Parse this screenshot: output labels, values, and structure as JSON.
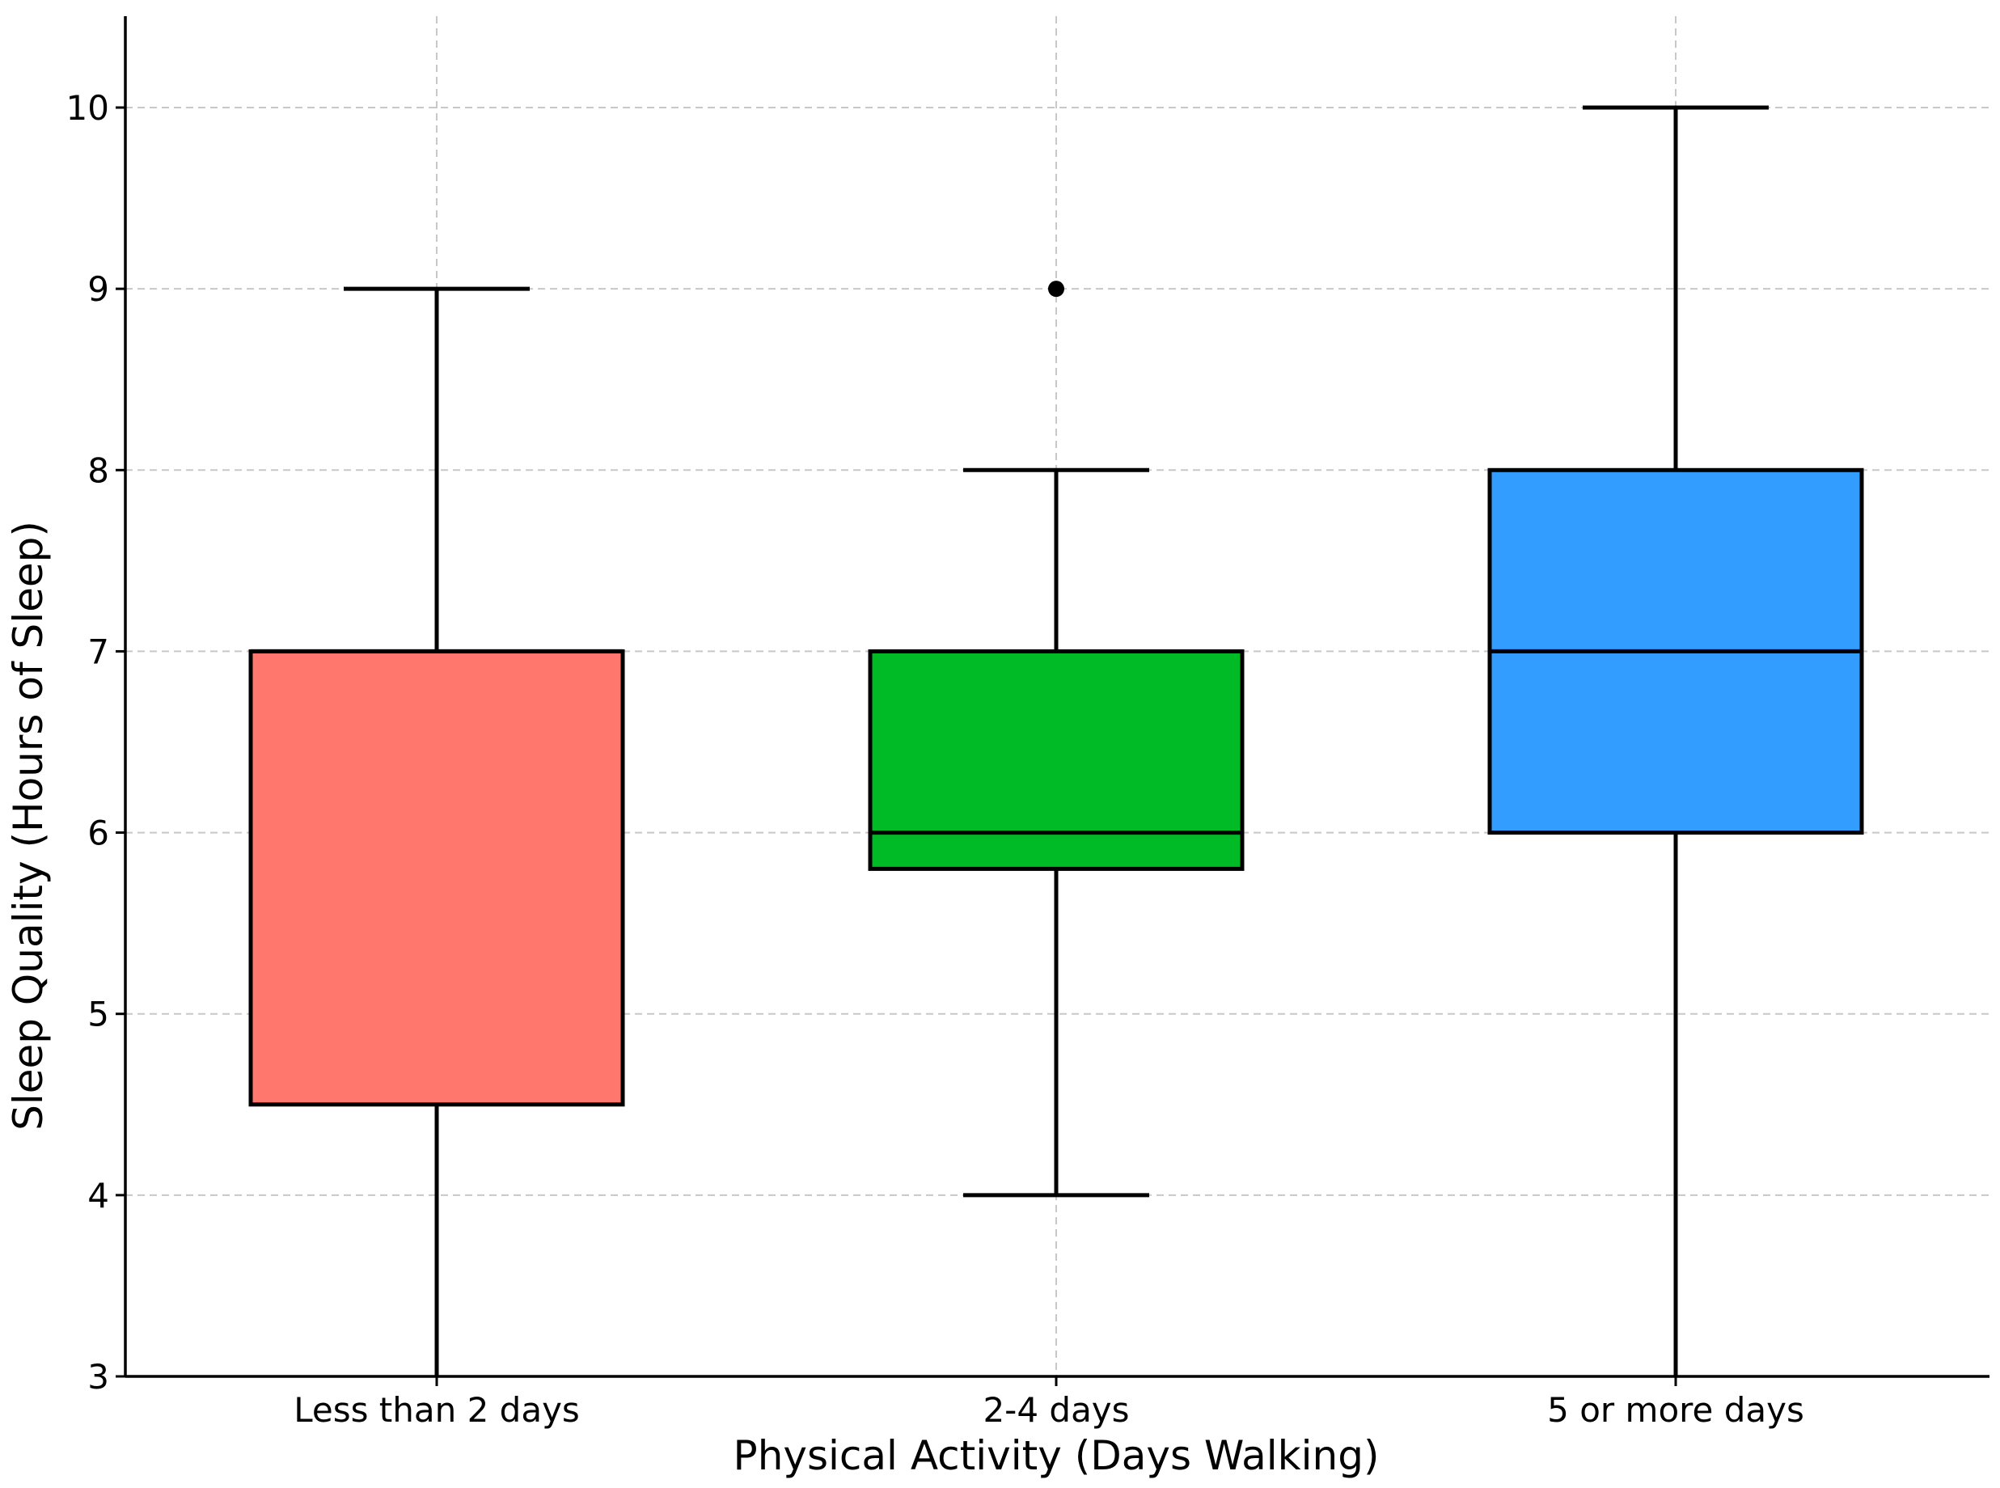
{
  "chart_data": {
    "type": "box",
    "title": "",
    "xlabel": "Physical Activity (Days Walking)",
    "ylabel": "Sleep Quality (Hours of Sleep)",
    "ylim": [
      3,
      10.5
    ],
    "yticks": [
      "3",
      "4",
      "5",
      "6",
      "7",
      "8",
      "9",
      "10"
    ],
    "grid": true,
    "categories": [
      "Less than 2 days",
      "2-4 days",
      "5 or more days"
    ],
    "boxes": [
      {
        "category": "Less than 2 days",
        "whisker_low": 3,
        "q1": 4.5,
        "median": 7,
        "q3": 7,
        "whisker_high": 9,
        "outliers": [],
        "color": "#ff776d"
      },
      {
        "category": "2-4 days",
        "whisker_low": 4,
        "q1": 5.8,
        "median": 6,
        "q3": 7,
        "whisker_high": 8,
        "outliers": [
          9
        ],
        "color": "#00ba26"
      },
      {
        "category": "5 or more days",
        "whisker_low": 3,
        "q1": 6,
        "median": 7,
        "q3": 8,
        "whisker_high": 10,
        "outliers": [],
        "color": "#339cff"
      }
    ]
  }
}
